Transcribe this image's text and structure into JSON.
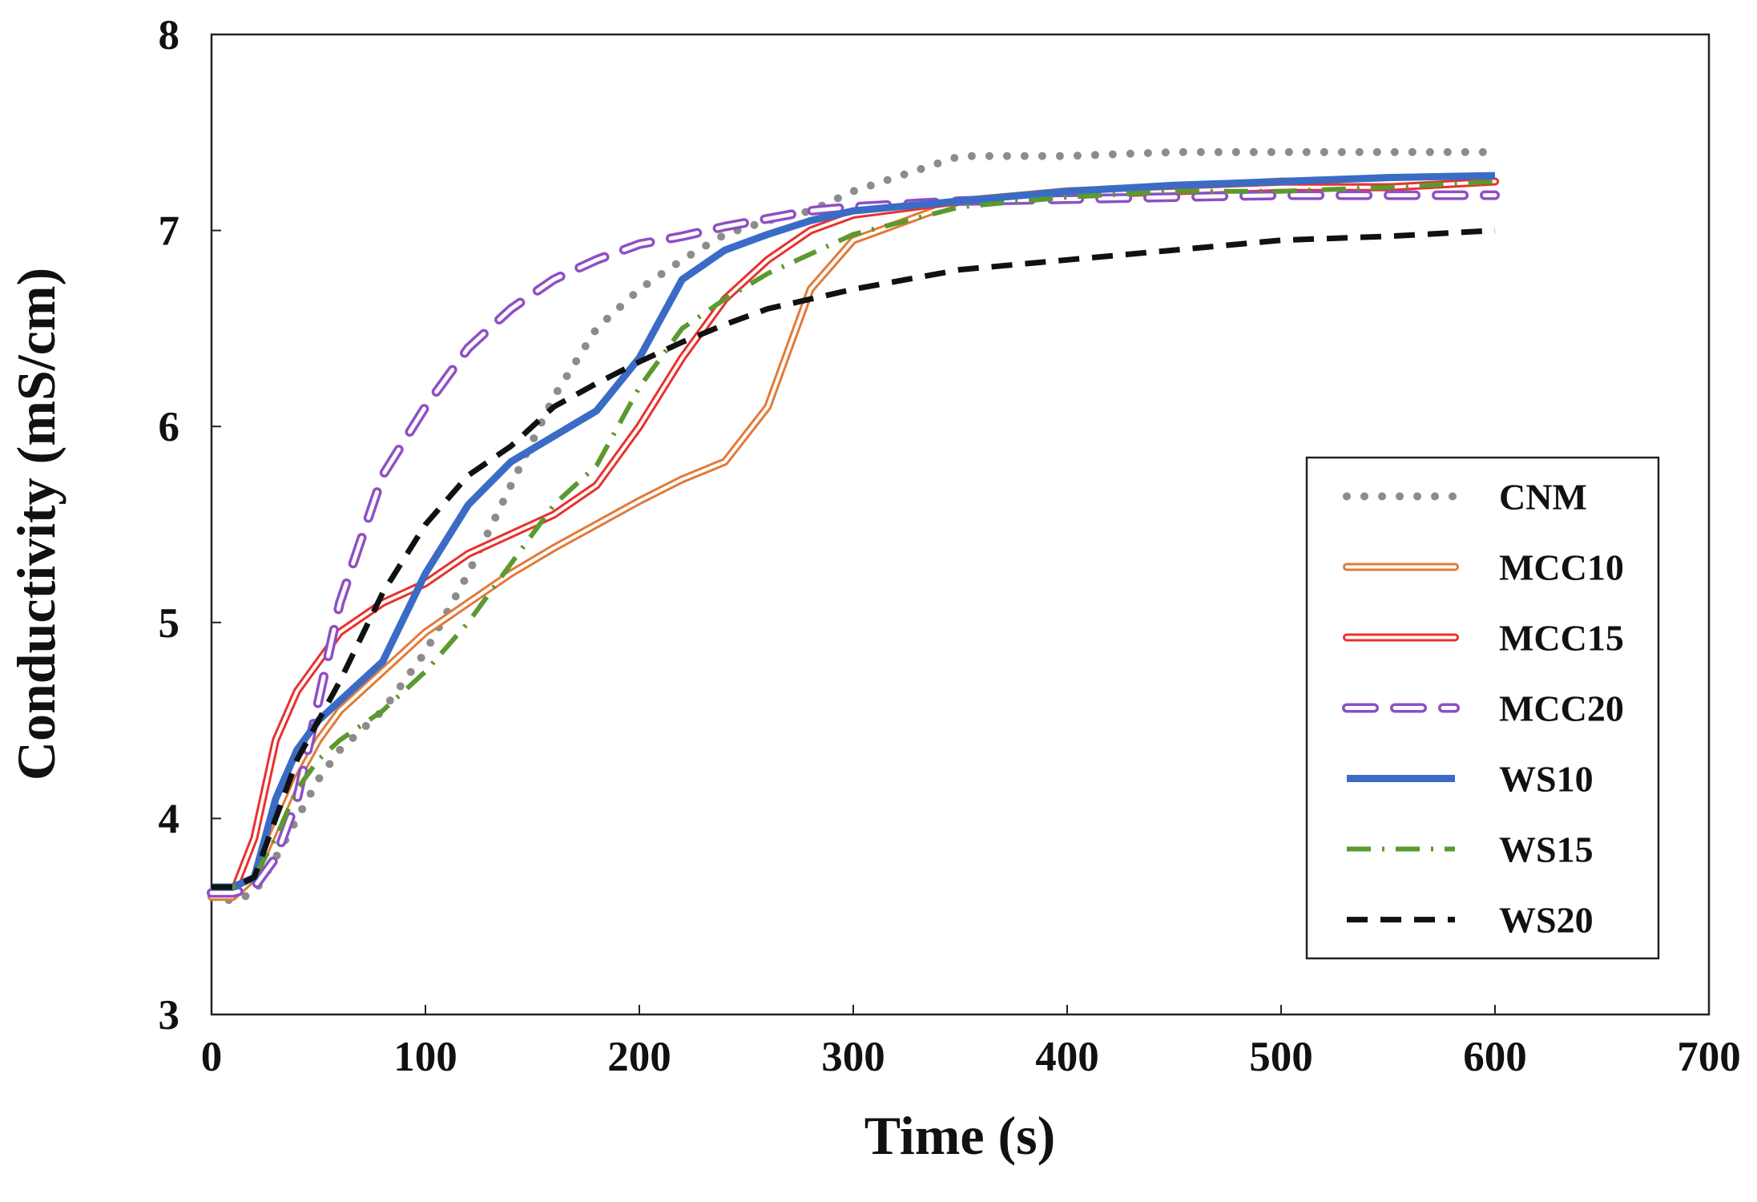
{
  "chart_data": {
    "type": "line",
    "x_label": "Time (s)",
    "y_label": "Conductivity (mS/cm)",
    "x": [
      0,
      10,
      20,
      30,
      40,
      50,
      60,
      80,
      100,
      120,
      140,
      160,
      180,
      200,
      220,
      240,
      260,
      280,
      300,
      350,
      400,
      450,
      500,
      550,
      600
    ],
    "series": [
      {
        "name": "CNM",
        "color": "#8c8c8c",
        "style": "dotted",
        "values": [
          3.6,
          3.58,
          3.62,
          3.8,
          4.0,
          4.2,
          4.35,
          4.55,
          4.85,
          5.25,
          5.7,
          6.15,
          6.5,
          6.7,
          6.85,
          6.98,
          7.05,
          7.1,
          7.2,
          7.38,
          7.38,
          7.4,
          7.4,
          7.4,
          7.4
        ]
      },
      {
        "name": "MCC10",
        "color": "#e07b39",
        "style": "double",
        "values": [
          3.6,
          3.6,
          3.7,
          3.95,
          4.2,
          4.4,
          4.55,
          4.75,
          4.95,
          5.1,
          5.25,
          5.38,
          5.5,
          5.62,
          5.73,
          5.82,
          6.1,
          6.7,
          6.95,
          7.15,
          7.2,
          7.22,
          7.25,
          7.25,
          7.25
        ]
      },
      {
        "name": "MCC15",
        "color": "#e8312e",
        "style": "double",
        "values": [
          3.62,
          3.62,
          3.9,
          4.4,
          4.65,
          4.8,
          4.95,
          5.1,
          5.2,
          5.35,
          5.45,
          5.55,
          5.7,
          6.0,
          6.35,
          6.65,
          6.85,
          7.0,
          7.08,
          7.15,
          7.18,
          7.2,
          7.22,
          7.22,
          7.25
        ]
      },
      {
        "name": "MCC20",
        "color": "#8e4fc4",
        "style": "double-dashed",
        "values": [
          3.62,
          3.62,
          3.65,
          3.8,
          4.1,
          4.6,
          5.1,
          5.75,
          6.1,
          6.4,
          6.6,
          6.75,
          6.85,
          6.93,
          6.97,
          7.02,
          7.06,
          7.1,
          7.12,
          7.15,
          7.16,
          7.17,
          7.18,
          7.18,
          7.18
        ]
      },
      {
        "name": "WS10",
        "color": "#3a6cc6",
        "style": "solid",
        "values": [
          3.65,
          3.65,
          3.7,
          4.1,
          4.35,
          4.5,
          4.6,
          4.8,
          5.25,
          5.6,
          5.82,
          5.95,
          6.08,
          6.35,
          6.75,
          6.9,
          6.98,
          7.05,
          7.1,
          7.15,
          7.2,
          7.23,
          7.25,
          7.27,
          7.28
        ]
      },
      {
        "name": "WS15",
        "color": "#5a9a2e",
        "style": "dash-dot",
        "values": [
          3.65,
          3.65,
          3.7,
          3.9,
          4.15,
          4.3,
          4.4,
          4.55,
          4.75,
          5.0,
          5.3,
          5.6,
          5.8,
          6.2,
          6.5,
          6.65,
          6.78,
          6.88,
          6.98,
          7.12,
          7.17,
          7.2,
          7.2,
          7.22,
          7.25
        ]
      },
      {
        "name": "WS20",
        "color": "#111111",
        "style": "dashed",
        "values": [
          3.65,
          3.65,
          3.7,
          4.0,
          4.3,
          4.5,
          4.7,
          5.15,
          5.5,
          5.75,
          5.9,
          6.1,
          6.22,
          6.33,
          6.43,
          6.52,
          6.6,
          6.65,
          6.7,
          6.8,
          6.85,
          6.9,
          6.95,
          6.97,
          7.0
        ]
      }
    ],
    "xlim": [
      0,
      700
    ],
    "xticks": [
      0,
      100,
      200,
      300,
      400,
      500,
      600,
      700
    ],
    "ylim": [
      3,
      8
    ],
    "yticks": [
      3,
      4,
      5,
      6,
      7,
      8
    ],
    "grid": false,
    "legend": "lower right"
  }
}
